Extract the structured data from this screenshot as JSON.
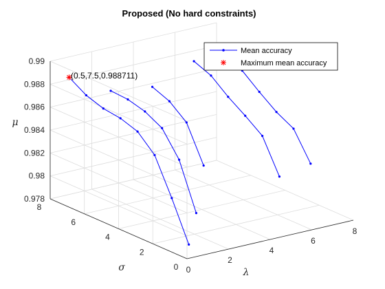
{
  "chart_data": {
    "type": "line",
    "title": "Proposed (No hard constraints)",
    "xlabel": "λ",
    "ylabel": "σ",
    "zlabel": "μ",
    "xlim": [
      0,
      8
    ],
    "ylim": [
      0,
      8
    ],
    "zlim": [
      0.978,
      0.99
    ],
    "xticks": [
      "0",
      "2",
      "4",
      "6",
      "8"
    ],
    "yticks": [
      "0",
      "2",
      "4",
      "6",
      "8"
    ],
    "zticks": [
      "0.978",
      "0.98",
      "0.982",
      "0.984",
      "0.986",
      "0.988",
      "0.99"
    ],
    "grid": true,
    "legend_position": "top-right",
    "series": [
      {
        "name": "Mean accuracy",
        "color": "#0000ff",
        "lines": [
          {
            "lambda": 0.5,
            "sigma": [
              7.5,
              6.5,
              5.5,
              4.5,
              3.5,
              2.5,
              1.5,
              0.5
            ],
            "mu": [
              0.988711,
              0.9878,
              0.9873,
              0.9871,
              0.9866,
              0.9852,
              0.9821,
              0.9787
            ]
          },
          {
            "lambda": 2.5,
            "sigma": [
              7.5,
              6.5,
              5.5,
              4.5,
              3.5,
              2.5
            ],
            "mu": [
              0.9867,
              0.9866,
              0.9862,
              0.9854,
              0.9833,
              0.9793
            ]
          },
          {
            "lambda": 4.5,
            "sigma": [
              7.5,
              6.5,
              5.5,
              4.5
            ],
            "mu": [
              0.9862,
              0.9856,
              0.9844,
              0.9813
            ]
          },
          {
            "lambda": 6.5,
            "sigma": [
              7.5,
              6.5,
              5.5,
              4.5,
              3.5,
              2.5
            ],
            "mu": [
              0.9876,
              0.987,
              0.9858,
              0.9848,
              0.9837,
              0.9808
            ]
          },
          {
            "lambda": 8.0,
            "sigma": [
              7.5,
              6.5,
              5.5,
              4.5,
              3.5,
              2.5
            ],
            "mu": [
              0.9876,
              0.9868,
              0.9856,
              0.9845,
              0.9837,
              0.9813
            ]
          }
        ]
      },
      {
        "name": "Maximum mean accuracy",
        "color": "#ff0000",
        "points": [
          {
            "lambda": 0.5,
            "sigma": 7.5,
            "mu": 0.988711
          }
        ]
      }
    ],
    "annotation": "(0.5,7.5,0.988711)"
  }
}
